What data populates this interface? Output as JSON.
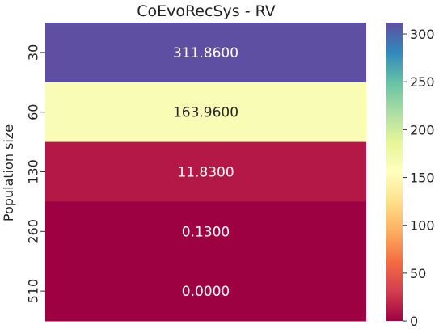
{
  "chart_data": {
    "type": "heatmap",
    "title": "CoEvoRecSys - RV",
    "ylabel": "Population size",
    "xlabel": "",
    "rows": [
      "30",
      "60",
      "130",
      "260",
      "510"
    ],
    "values": [
      311.86,
      163.96,
      11.83,
      0.13,
      0.0
    ],
    "value_labels": [
      "311.8600",
      "163.9600",
      "11.8300",
      "0.1300",
      "0.0000"
    ],
    "colormap": "Spectral",
    "vmin": 0,
    "vmax": 311.86,
    "colorbar_ticks": [
      0,
      50,
      100,
      150,
      200,
      250,
      300
    ],
    "colorbar_tick_labels": [
      "0",
      "50",
      "100",
      "150",
      "200",
      "250",
      "300"
    ]
  }
}
